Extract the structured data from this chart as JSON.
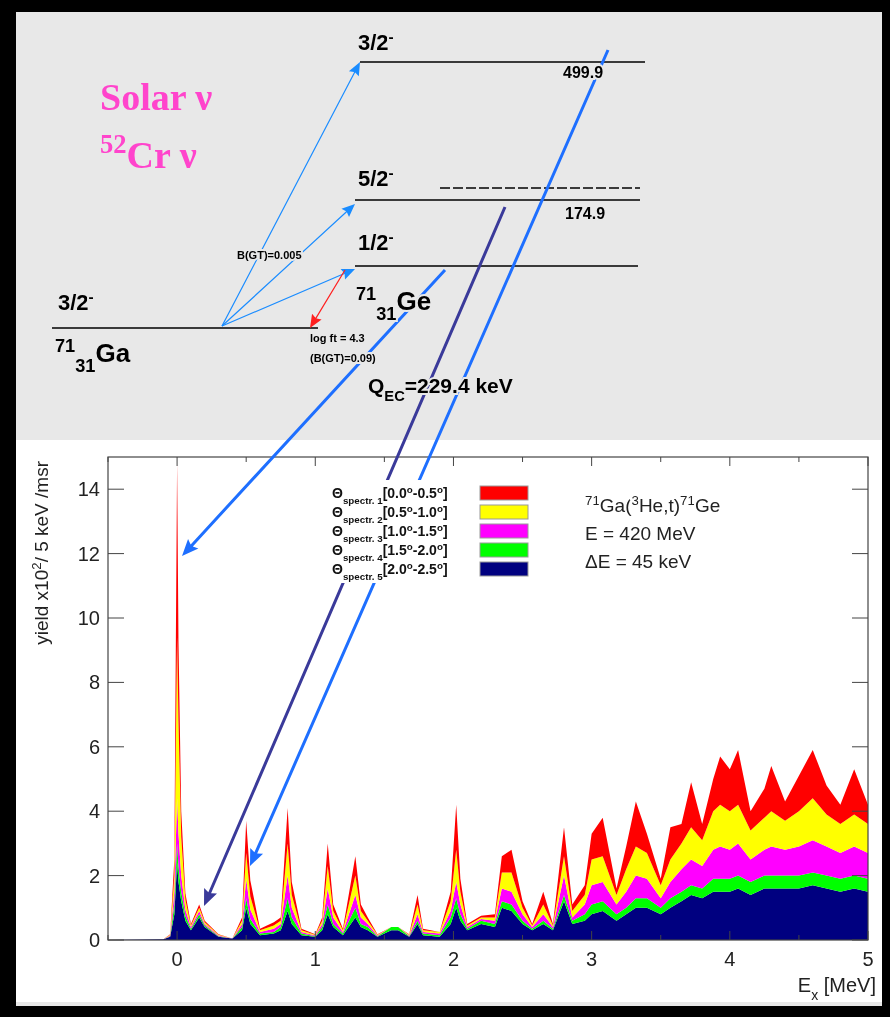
{
  "chart_data": {
    "type": "area",
    "stacked": true,
    "xlabel": "E$_{x}$ [MeV]",
    "ylabel": "yield x10$^{2}$/ 5 keV /msr",
    "xlim": [
      -0.5,
      5
    ],
    "ylim": [
      0,
      15
    ],
    "xticks": [
      {
        "value": -0.5,
        "label": null
      },
      0,
      {
        "value": 0.5,
        "label": null
      },
      1,
      {
        "value": 1.5,
        "label": null
      },
      2,
      {
        "value": 2.5,
        "label": null
      },
      3,
      {
        "value": 3.5,
        "label": null
      },
      4,
      {
        "value": 4.5,
        "label": null
      },
      5
    ],
    "yticks": [
      0,
      2,
      4,
      6,
      8,
      10,
      12,
      14
    ],
    "grid": false,
    "legend": "top",
    "x": [
      -0.5,
      -0.1,
      -0.05,
      -0.02,
      0,
      0.01,
      0.03,
      0.06,
      0.1,
      0.16,
      0.2,
      0.3,
      0.4,
      0.47,
      0.5,
      0.53,
      0.6,
      0.7,
      0.75,
      0.8,
      0.83,
      0.9,
      1.0,
      1.05,
      1.09,
      1.13,
      1.2,
      1.29,
      1.33,
      1.38,
      1.45,
      1.55,
      1.6,
      1.68,
      1.74,
      1.78,
      1.9,
      1.98,
      2.02,
      2.05,
      2.1,
      2.2,
      2.3,
      2.35,
      2.42,
      2.5,
      2.57,
      2.65,
      2.72,
      2.8,
      2.86,
      2.95,
      3.0,
      3.08,
      3.18,
      3.25,
      3.32,
      3.4,
      3.5,
      3.57,
      3.65,
      3.72,
      3.8,
      3.88,
      3.93,
      4.0,
      4.06,
      4.15,
      4.25,
      4.3,
      4.4,
      4.5,
      4.6,
      4.7,
      4.8,
      4.9,
      5.0
    ],
    "series": [
      {
        "name": "Θ$_{spectr. 5}$[2.0$^{o}$-2.5$^{o}$]",
        "color": "#000080",
        "values": [
          0,
          0.02,
          0.1,
          0.8,
          2.4,
          1.8,
          1.2,
          0.6,
          0.3,
          0.7,
          0.4,
          0.1,
          0.05,
          0.3,
          1.0,
          0.5,
          0.15,
          0.2,
          0.3,
          0.9,
          0.5,
          0.15,
          0.1,
          0.3,
          0.8,
          0.4,
          0.15,
          0.7,
          0.4,
          0.3,
          0.1,
          0.3,
          0.3,
          0.1,
          0.5,
          0.15,
          0.1,
          0.5,
          1.0,
          0.6,
          0.3,
          0.5,
          0.4,
          1.0,
          0.9,
          0.5,
          0.3,
          0.5,
          0.3,
          1.2,
          0.5,
          0.6,
          0.8,
          0.9,
          0.6,
          0.8,
          1.0,
          1.0,
          0.8,
          1.0,
          1.2,
          1.4,
          1.3,
          1.5,
          1.5,
          1.5,
          1.6,
          1.4,
          1.6,
          1.6,
          1.6,
          1.6,
          1.7,
          1.6,
          1.5,
          1.6,
          1.5
        ]
      },
      {
        "name": "Θ$_{spectr. 4}$[1.5$^{o}$-2.0$^{o}$]",
        "color": "#00ff00",
        "values": [
          0,
          0,
          0.02,
          0.3,
          0.6,
          0.5,
          0.3,
          0.15,
          0.05,
          0.1,
          0.05,
          0.02,
          0,
          0.1,
          0.3,
          0.15,
          0.05,
          0.05,
          0.1,
          0.4,
          0.2,
          0.05,
          0.02,
          0.1,
          0.3,
          0.1,
          0.05,
          0.3,
          0.1,
          0.1,
          0.02,
          0.1,
          0.1,
          0.02,
          0.1,
          0.05,
          0.05,
          0.2,
          0.3,
          0.2,
          0.05,
          0.1,
          0.1,
          0.2,
          0.2,
          0.1,
          0.05,
          0.1,
          0.05,
          0.2,
          0.1,
          0.2,
          0.3,
          0.3,
          0.2,
          0.2,
          0.3,
          0.3,
          0.2,
          0.3,
          0.3,
          0.3,
          0.3,
          0.4,
          0.4,
          0.4,
          0.4,
          0.4,
          0.4,
          0.4,
          0.4,
          0.4,
          0.4,
          0.4,
          0.4,
          0.4,
          0.4
        ]
      },
      {
        "name": "Θ$_{spectr. 3}$[1.0$^{o}$-1.5$^{o}$]",
        "color": "#ff00ff",
        "values": [
          0,
          0,
          0.02,
          0.4,
          1.4,
          1.0,
          0.5,
          0.2,
          0.05,
          0.1,
          0.05,
          0.02,
          0,
          0.1,
          0.6,
          0.3,
          0.05,
          0.1,
          0.1,
          0.7,
          0.3,
          0.05,
          0.02,
          0.1,
          0.5,
          0.2,
          0.05,
          0.4,
          0.2,
          0.1,
          0.02,
          0,
          0,
          0.02,
          0.2,
          0.05,
          0.05,
          0.2,
          0.5,
          0.3,
          0.05,
          0.05,
          0.1,
          0.4,
          0.4,
          0.2,
          0.05,
          0.2,
          0.05,
          0.6,
          0.1,
          0.3,
          0.6,
          0.6,
          0.3,
          0.5,
          0.7,
          0.6,
          0.3,
          0.5,
          0.7,
          0.8,
          0.7,
          0.9,
          1.0,
          0.9,
          1.0,
          0.7,
          0.8,
          0.9,
          0.8,
          0.9,
          1.0,
          0.9,
          0.8,
          0.9,
          0.8
        ]
      },
      {
        "name": "Θ$_{spectr. 2}$[0.5$^{o}$-1.0$^{o}$]",
        "color": "#ffff00",
        "values": [
          0,
          0,
          0.02,
          0.5,
          5.0,
          3.5,
          1.2,
          0.3,
          0.05,
          0.1,
          0.05,
          0.02,
          0,
          0.1,
          0.8,
          0.4,
          0.05,
          0.1,
          0.1,
          1.0,
          0.4,
          0.05,
          0.02,
          0.1,
          0.7,
          0.2,
          0.05,
          0.6,
          0.2,
          0.1,
          0.02,
          0,
          0,
          0.02,
          0.3,
          0.05,
          0.05,
          0.3,
          1.0,
          0.4,
          0.05,
          0.05,
          0.1,
          0.5,
          0.6,
          0.2,
          0.05,
          0.3,
          0.05,
          0.6,
          0.2,
          0.3,
          0.8,
          0.8,
          0.3,
          0.7,
          0.9,
          0.8,
          0.4,
          0.7,
          0.8,
          1.0,
          0.8,
          1.2,
          1.3,
          1.2,
          1.2,
          0.9,
          1.0,
          1.1,
          0.9,
          1.1,
          1.3,
          1.0,
          0.9,
          1.0,
          0.9
        ]
      },
      {
        "name": "Θ$_{spectr. 1}$[0.0$^{o}$-0.5$^{o}$]",
        "color": "#ff0000",
        "values": [
          0,
          0,
          0.02,
          0.5,
          5.4,
          2.5,
          0.8,
          0.2,
          0.05,
          0.1,
          0.05,
          0.02,
          0,
          0.1,
          1.0,
          0.5,
          0.05,
          0.1,
          0.1,
          1.1,
          0.4,
          0.05,
          0.02,
          0.1,
          0.7,
          0.2,
          0.05,
          0.6,
          0.2,
          0.1,
          0.02,
          0,
          0,
          0.02,
          0.3,
          0.05,
          0,
          0.3,
          1.4,
          0.4,
          0.05,
          0.05,
          0.1,
          0.5,
          0.7,
          0.2,
          0.05,
          0.4,
          0.05,
          0.9,
          0.2,
          0.3,
          0.8,
          1.2,
          0.2,
          0.7,
          1.4,
          0.6,
          0.2,
          1.0,
          0.6,
          1.4,
          0.5,
          1.0,
          1.5,
          1.3,
          1.7,
          0.6,
          0.9,
          1.4,
          0.6,
          1.1,
          1.5,
          0.9,
          0.6,
          1.4,
          0.6
        ]
      }
    ],
    "annotations": [
      "$^{71}$Ga($^{3}$He,t)$^{71}$Ge",
      "E = 420 MeV",
      "ΔE = 45 keV",
      "Solar ν",
      "$^{52}$Cr  ν",
      "3/2$^{-}$",
      "$^{71}$$_{31}$Ga",
      "3/2$^{-}$",
      "499.9",
      "5/2$^{-}$",
      "174.9",
      "1/2$^{-}$",
      "$^{71}$$_{31}$Ge",
      "B(GT)=0.005",
      "log ft = 4.3",
      "(B(GT)=0.09)",
      "Q$_{EC}$=229.4 keV"
    ]
  }
}
